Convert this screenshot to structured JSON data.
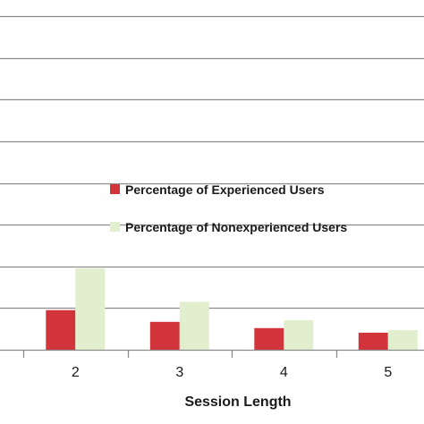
{
  "chart_data": {
    "type": "bar",
    "categories": [
      "2",
      "3",
      "4",
      "5"
    ],
    "series": [
      {
        "name": "Percentage of Experienced Users",
        "values": [
          9.5,
          6.7,
          5.2,
          4.1
        ],
        "color": "#d2343b"
      },
      {
        "name": "Percentage of Nonexperienced Users",
        "values": [
          19.5,
          11.5,
          7.1,
          4.7
        ],
        "color": "#e1efcf"
      }
    ],
    "xlabel": "Session Length",
    "ylabel": "",
    "ylim": [
      0,
      80
    ],
    "grid": true,
    "legend": "center-right",
    "colors": {
      "grid": "#8c8c8c",
      "axis": "#8c8c8c",
      "text": "#1a1a1a"
    }
  }
}
